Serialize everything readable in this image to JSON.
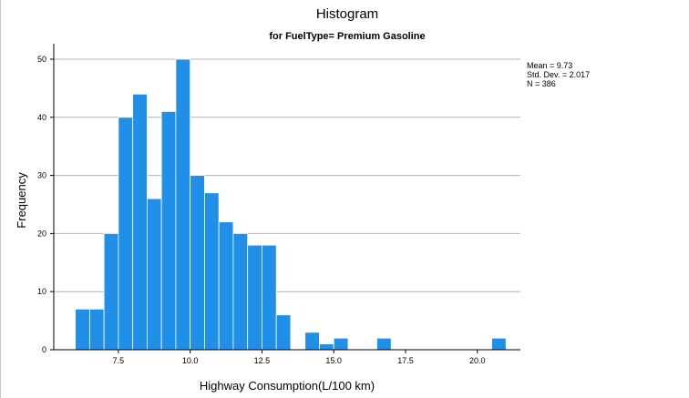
{
  "chart_data": {
    "type": "bar",
    "title": "Histogram",
    "subtitle": "for FuelType= Premium Gasoline",
    "xlabel": "Highway Consumption(L/100 km)",
    "ylabel": "Frequency",
    "bin_width": 0.5,
    "xlim": [
      5.25,
      21.5
    ],
    "ylim": [
      0,
      50
    ],
    "xticks": [
      7.5,
      10.0,
      12.5,
      15.0,
      17.5,
      20.0
    ],
    "xtick_labels": [
      "7.5",
      "10.0",
      "12.5",
      "15.0",
      "17.5",
      "20.0"
    ],
    "yticks": [
      0,
      10,
      20,
      30,
      40,
      50
    ],
    "ytick_labels": [
      "0",
      "10",
      "20",
      "30",
      "40",
      "50"
    ],
    "grid": true,
    "bar_color": "#1f8fe8",
    "bars": [
      {
        "x0": 6.0,
        "value": 7
      },
      {
        "x0": 6.5,
        "value": 7
      },
      {
        "x0": 7.0,
        "value": 20
      },
      {
        "x0": 7.5,
        "value": 40
      },
      {
        "x0": 8.0,
        "value": 44
      },
      {
        "x0": 8.5,
        "value": 26
      },
      {
        "x0": 9.0,
        "value": 41
      },
      {
        "x0": 9.5,
        "value": 50
      },
      {
        "x0": 10.0,
        "value": 30
      },
      {
        "x0": 10.5,
        "value": 27
      },
      {
        "x0": 11.0,
        "value": 22
      },
      {
        "x0": 11.5,
        "value": 20
      },
      {
        "x0": 12.0,
        "value": 18
      },
      {
        "x0": 12.5,
        "value": 18
      },
      {
        "x0": 13.0,
        "value": 6
      },
      {
        "x0": 14.0,
        "value": 3
      },
      {
        "x0": 14.5,
        "value": 1
      },
      {
        "x0": 15.0,
        "value": 2
      },
      {
        "x0": 16.5,
        "value": 2
      },
      {
        "x0": 20.5,
        "value": 2
      }
    ],
    "stats": {
      "mean": "Mean = 9.73",
      "std": "Std. Dev. = 2.017",
      "n": "N = 386"
    }
  }
}
